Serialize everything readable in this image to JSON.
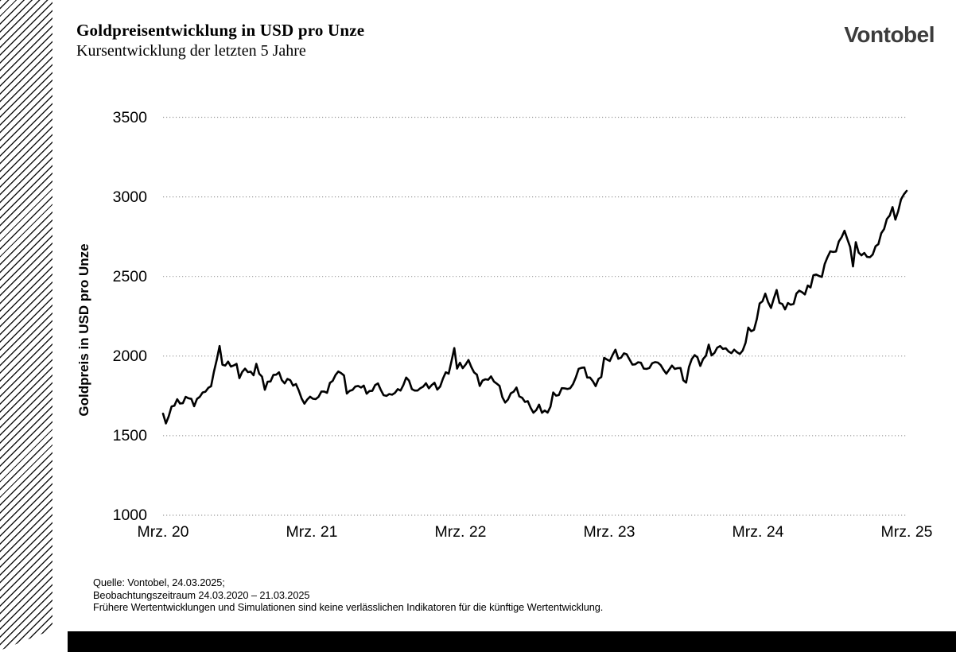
{
  "header": {
    "title": "Goldpreisentwicklung in USD pro Unze",
    "subtitle": "Kursentwicklung der letzten 5 Jahre",
    "logo": "Vontobel"
  },
  "footer": {
    "line1": "Quelle: Vontobel, 24.03.2025;",
    "line2": "Beobachtungszeitraum 24.03.2020 – 21.03.2025",
    "line3": "Frühere Wertentwicklungen und Simulationen sind keine verlässlichen Indikatoren für die künftige Wertentwicklung."
  },
  "chart_data": {
    "type": "line",
    "title": "Goldpreisentwicklung in USD pro Unze",
    "xlabel": "",
    "ylabel": "Goldpreis in USD pro Unze",
    "x_ticks": [
      "Mrz. 20",
      "Mrz. 21",
      "Mrz. 22",
      "Mrz. 23",
      "Mrz. 24",
      "Mrz. 25"
    ],
    "y_ticks": [
      1000,
      1500,
      2000,
      2500,
      3000,
      3500
    ],
    "ylim": [
      1000,
      3500
    ],
    "grid": "horizontal-dotted",
    "legend": "none",
    "line_color": "#000000",
    "grid_color": "#9a9a9a",
    "series_name": "Goldpreis in USD pro Unze (wöchentlich, 24.03.2020 – 21.03.2025)",
    "values": [
      1638,
      1577,
      1621,
      1683,
      1688,
      1729,
      1702,
      1704,
      1744,
      1735,
      1731,
      1685,
      1731,
      1744,
      1771,
      1776,
      1800,
      1810,
      1902,
      1976,
      2063,
      1945,
      1940,
      1965,
      1934,
      1941,
      1951,
      1861,
      1900,
      1921,
      1899,
      1902,
      1879,
      1951,
      1889,
      1871,
      1788,
      1839,
      1840,
      1881,
      1883,
      1898,
      1849,
      1828,
      1856,
      1848,
      1814,
      1824,
      1784,
      1734,
      1701,
      1727,
      1745,
      1732,
      1730,
      1744,
      1777,
      1777,
      1769,
      1831,
      1844,
      1881,
      1903,
      1892,
      1878,
      1764,
      1781,
      1787,
      1808,
      1812,
      1802,
      1814,
      1763,
      1780,
      1781,
      1817,
      1828,
      1788,
      1754,
      1750,
      1761,
      1757,
      1768,
      1792,
      1783,
      1818,
      1865,
      1845,
      1792,
      1783,
      1783,
      1798,
      1808,
      1829,
      1797,
      1817,
      1832,
      1789,
      1808,
      1859,
      1898,
      1889,
      1966,
      2050,
      1921,
      1958,
      1924,
      1946,
      1975,
      1932,
      1897,
      1883,
      1812,
      1846,
      1854,
      1851,
      1872,
      1840,
      1827,
      1812,
      1742,
      1708,
      1727,
      1766,
      1776,
      1802,
      1747,
      1738,
      1712,
      1717,
      1675,
      1644,
      1661,
      1695,
      1644,
      1658,
      1645,
      1682,
      1771,
      1751,
      1755,
      1798,
      1797,
      1793,
      1798,
      1824,
      1866,
      1920,
      1926,
      1928,
      1865,
      1865,
      1842,
      1811,
      1856,
      1868,
      1989,
      1978,
      1969,
      2008,
      2040,
      1983,
      1990,
      2017,
      2011,
      1978,
      1946,
      1948,
      1961,
      1958,
      1921,
      1919,
      1925,
      1955,
      1962,
      1959,
      1943,
      1913,
      1889,
      1915,
      1940,
      1919,
      1924,
      1925,
      1848,
      1833,
      1932,
      1981,
      2006,
      1992,
      1938,
      1981,
      2002,
      2072,
      2004,
      2020,
      2053,
      2063,
      2045,
      2049,
      2029,
      2018,
      2040,
      2024,
      2013,
      2035,
      2083,
      2179,
      2156,
      2165,
      2233,
      2330,
      2344,
      2392,
      2338,
      2302,
      2361,
      2415,
      2334,
      2327,
      2293,
      2333,
      2322,
      2327,
      2392,
      2411,
      2401,
      2387,
      2443,
      2431,
      2508,
      2512,
      2503,
      2497,
      2578,
      2622,
      2658,
      2654,
      2657,
      2720,
      2747,
      2787,
      2736,
      2685,
      2563,
      2716,
      2650,
      2633,
      2648,
      2623,
      2621,
      2638,
      2690,
      2703,
      2771,
      2798,
      2861,
      2883,
      2936,
      2857,
      2910,
      2984,
      3015,
      3038
    ]
  }
}
